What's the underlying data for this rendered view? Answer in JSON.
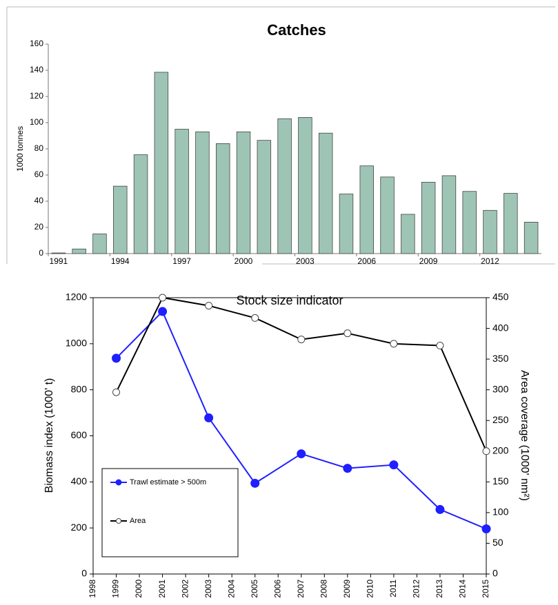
{
  "chart_data": [
    {
      "type": "bar",
      "title": "Catches",
      "ylabel": "1000 tonnes",
      "categories": [
        "1991",
        null,
        null,
        "1994",
        null,
        null,
        "1997",
        null,
        null,
        "2000",
        null,
        null,
        "2003",
        null,
        null,
        "2006",
        null,
        null,
        "2009",
        null,
        null,
        "2012",
        null,
        null
      ],
      "values": [
        0.5,
        3.5,
        15,
        51.5,
        75.5,
        138.5,
        95,
        93,
        84,
        93,
        86.5,
        103,
        104,
        92,
        45.5,
        67,
        58.5,
        30,
        54.5,
        59.5,
        47.5,
        33,
        46,
        24
      ],
      "color": "#9ec4b5",
      "ylim": [
        0,
        160
      ],
      "yticks": [
        0,
        20,
        40,
        60,
        80,
        100,
        120,
        140,
        160
      ],
      "grid": false
    },
    {
      "type": "line",
      "title": "Stock size indicator",
      "ylabel": "Biomass index (1000' t)",
      "y2label": "Area coverage (1000' nm²)",
      "x": [
        1999,
        2001,
        2003,
        2005,
        2007,
        2009,
        2011,
        2013,
        2015
      ],
      "series": [
        {
          "name": "Trawl estimate > 500m",
          "color": "#1f1fff",
          "values": [
            937,
            1140,
            678,
            394,
            522,
            459,
            474,
            280,
            196
          ]
        },
        {
          "name": "Area",
          "color": "#000000",
          "axis": "y2",
          "values": [
            296,
            450,
            437,
            417,
            382,
            392,
            375,
            372,
            200
          ]
        }
      ],
      "xlim": [
        1998,
        2015
      ],
      "xticks": [
        1998,
        1999,
        2000,
        2001,
        2002,
        2003,
        2004,
        2005,
        2006,
        2007,
        2008,
        2009,
        2010,
        2011,
        2012,
        2013,
        2014,
        2015
      ],
      "ylim": [
        0,
        1200
      ],
      "yticks": [
        0,
        200,
        400,
        600,
        800,
        1000,
        1200
      ],
      "y2lim": [
        0,
        450
      ],
      "y2ticks": [
        0,
        50,
        100,
        150,
        200,
        250,
        300,
        350,
        400,
        450
      ],
      "legend": "lower left",
      "grid": false
    }
  ]
}
